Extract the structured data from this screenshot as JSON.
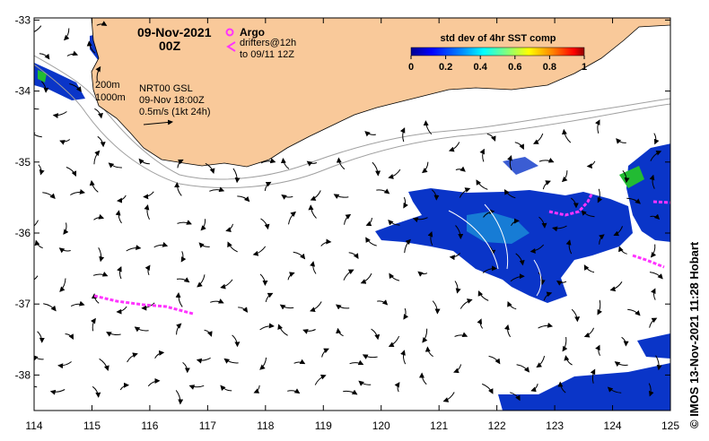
{
  "map": {
    "datetime_line1": "09-Nov-2021",
    "datetime_line2": "00Z",
    "product_line1": "NRT00 GSL",
    "product_line2": "09-Nov 18:00Z",
    "product_line3": "0.5m/s (1kt 24h)",
    "isobath_200": "200m",
    "isobath_1000": "1000m",
    "argo_label": "Argo",
    "drifters_line1": "drifters@12h",
    "drifters_line2": "to 09/11 12Z",
    "credit": "© IMOS 13-Nov-2021 11:28 Hobart",
    "colorbar": {
      "title": "std dev of 4hr SST comp",
      "ticks": [
        "0",
        "0.2",
        "0.4",
        "0.6",
        "0.8",
        "1"
      ]
    },
    "lon_ticks": [
      "114",
      "115",
      "116",
      "117",
      "118",
      "119",
      "120",
      "121",
      "122",
      "123",
      "124",
      "125"
    ],
    "lat_ticks": [
      "-33",
      "-34",
      "-35",
      "-36",
      "-37",
      "-38"
    ],
    "colors": {
      "land": "#f9c99a",
      "argo": "#ff33ff",
      "drifters": "#ff33ff",
      "sst_low": "#0033cc",
      "sst_mid": "#00c0c0",
      "sst_high": "#33cc33"
    }
  }
}
